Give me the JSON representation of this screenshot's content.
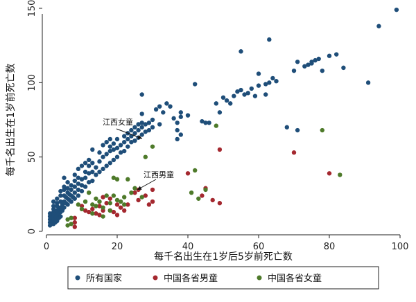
{
  "chart_data": {
    "type": "scatter",
    "xlabel": "每千名出生在1岁后5岁前死亡数",
    "ylabel": "每千名出生在1岁前死亡数",
    "xlim": [
      0,
      100
    ],
    "ylim": [
      0,
      150
    ],
    "xticks": [
      0,
      20,
      40,
      60,
      80,
      100
    ],
    "yticks": [
      0,
      50,
      100,
      150
    ],
    "grid": false,
    "legend_position": "bottom",
    "series": [
      {
        "name": "所有国家",
        "color": "#1f4e79",
        "points": [
          [
            1,
            4
          ],
          [
            1,
            6
          ],
          [
            1,
            8
          ],
          [
            1,
            10
          ],
          [
            1,
            12
          ],
          [
            1.5,
            5
          ],
          [
            1.5,
            7
          ],
          [
            1.5,
            9
          ],
          [
            2,
            5
          ],
          [
            2,
            7
          ],
          [
            2,
            9
          ],
          [
            2,
            11
          ],
          [
            2,
            13
          ],
          [
            2,
            15
          ],
          [
            2,
            17
          ],
          [
            2,
            20
          ],
          [
            2.5,
            6
          ],
          [
            2.5,
            8
          ],
          [
            2.5,
            10
          ],
          [
            2.5,
            12
          ],
          [
            3,
            7
          ],
          [
            3,
            9
          ],
          [
            3,
            11
          ],
          [
            3,
            14
          ],
          [
            3,
            17
          ],
          [
            3,
            19
          ],
          [
            3,
            22
          ],
          [
            3.5,
            9
          ],
          [
            3.5,
            12
          ],
          [
            3.5,
            15
          ],
          [
            4,
            10
          ],
          [
            4,
            13
          ],
          [
            4,
            16
          ],
          [
            4,
            20
          ],
          [
            4,
            24
          ],
          [
            4,
            27
          ],
          [
            4.5,
            14
          ],
          [
            4.5,
            18
          ],
          [
            5,
            16
          ],
          [
            5,
            20
          ],
          [
            5,
            24
          ],
          [
            5,
            28
          ],
          [
            5,
            30
          ],
          [
            5,
            36
          ],
          [
            5.5,
            19
          ],
          [
            5.5,
            23
          ],
          [
            6,
            18
          ],
          [
            6,
            22
          ],
          [
            6,
            26
          ],
          [
            6,
            29
          ],
          [
            6,
            33
          ],
          [
            6.5,
            21
          ],
          [
            6.5,
            25
          ],
          [
            7,
            20
          ],
          [
            7,
            24
          ],
          [
            7,
            28
          ],
          [
            7,
            31
          ],
          [
            7.5,
            23
          ],
          [
            8,
            22
          ],
          [
            8,
            26
          ],
          [
            8,
            30
          ],
          [
            8,
            34
          ],
          [
            8,
            38
          ],
          [
            9,
            24
          ],
          [
            9,
            28
          ],
          [
            9,
            32
          ],
          [
            9,
            36
          ],
          [
            9,
            42
          ],
          [
            10,
            27
          ],
          [
            10,
            31
          ],
          [
            10,
            35
          ],
          [
            10,
            44
          ],
          [
            11,
            30
          ],
          [
            11,
            36
          ],
          [
            11,
            40
          ],
          [
            11,
            46
          ],
          [
            12,
            33
          ],
          [
            12,
            39
          ],
          [
            12,
            44
          ],
          [
            12,
            48
          ],
          [
            13,
            34
          ],
          [
            13,
            40
          ],
          [
            13,
            46
          ],
          [
            13,
            55
          ],
          [
            14,
            38
          ],
          [
            14,
            43
          ],
          [
            15,
            40
          ],
          [
            15,
            47
          ],
          [
            15,
            53
          ],
          [
            16,
            42
          ],
          [
            16,
            50
          ],
          [
            16,
            58
          ],
          [
            17,
            44
          ],
          [
            17,
            52
          ],
          [
            17,
            60
          ],
          [
            18,
            46
          ],
          [
            18,
            54
          ],
          [
            18,
            57
          ],
          [
            18,
            62
          ],
          [
            19,
            48
          ],
          [
            19,
            55
          ],
          [
            19,
            59
          ],
          [
            20,
            50
          ],
          [
            20,
            56
          ],
          [
            20,
            62
          ],
          [
            21,
            53
          ],
          [
            21,
            58
          ],
          [
            22,
            54
          ],
          [
            22,
            60
          ],
          [
            22,
            64
          ],
          [
            23,
            57
          ],
          [
            23,
            62
          ],
          [
            23,
            66
          ],
          [
            24,
            60
          ],
          [
            24,
            64
          ],
          [
            24,
            68
          ],
          [
            25,
            61
          ],
          [
            25,
            66
          ],
          [
            25,
            70
          ],
          [
            26,
            63
          ],
          [
            26,
            68
          ],
          [
            26,
            72
          ],
          [
            27,
            65
          ],
          [
            27,
            70
          ],
          [
            27,
            73
          ],
          [
            27,
            79
          ],
          [
            27,
            92
          ],
          [
            28,
            67
          ],
          [
            28,
            72
          ],
          [
            29,
            68
          ],
          [
            29,
            73
          ],
          [
            30,
            70
          ],
          [
            30,
            75
          ],
          [
            31,
            82
          ],
          [
            32,
            72
          ],
          [
            32,
            84
          ],
          [
            33,
            80
          ],
          [
            34,
            86
          ],
          [
            35,
            84
          ],
          [
            36,
            76
          ],
          [
            37,
            73
          ],
          [
            37,
            68
          ],
          [
            37,
            62
          ],
          [
            38,
            65
          ],
          [
            38,
            77
          ],
          [
            38,
            80
          ],
          [
            40,
            78
          ],
          [
            42,
            99
          ],
          [
            44,
            74
          ],
          [
            45,
            73
          ],
          [
            46,
            73
          ],
          [
            48,
            86
          ],
          [
            49,
            80
          ],
          [
            50,
            90
          ],
          [
            51,
            88
          ],
          [
            52,
            86
          ],
          [
            53,
            91
          ],
          [
            54,
            94
          ],
          [
            55,
            95
          ],
          [
            55,
            121
          ],
          [
            56,
            92
          ],
          [
            57,
            93
          ],
          [
            58,
            96
          ],
          [
            59,
            91
          ],
          [
            60,
            98
          ],
          [
            60,
            106
          ],
          [
            62,
            92
          ],
          [
            62,
            99
          ],
          [
            63,
            100
          ],
          [
            63,
            129
          ],
          [
            64,
            103
          ],
          [
            65,
            101
          ],
          [
            68,
            70
          ],
          [
            70,
            108
          ],
          [
            71,
            68
          ],
          [
            71,
            114
          ],
          [
            73,
            111
          ],
          [
            74,
            112
          ],
          [
            75,
            114
          ],
          [
            75,
            113
          ],
          [
            76,
            115
          ],
          [
            77,
            116
          ],
          [
            78,
            108
          ],
          [
            80,
            118
          ],
          [
            82,
            119
          ],
          [
            84,
            110
          ],
          [
            91,
            100
          ],
          [
            94,
            138
          ],
          [
            99,
            149
          ]
        ]
      },
      {
        "name": "中国各省男童",
        "color": "#a4282f",
        "points": [
          [
            8,
            9
          ],
          [
            8,
            6
          ],
          [
            8,
            3
          ],
          [
            10,
            17
          ],
          [
            11,
            14
          ],
          [
            12,
            13
          ],
          [
            13,
            15
          ],
          [
            14,
            12
          ],
          [
            15,
            17
          ],
          [
            15,
            11
          ],
          [
            16,
            14
          ],
          [
            16,
            23
          ],
          [
            17,
            19
          ],
          [
            18,
            14
          ],
          [
            18,
            22
          ],
          [
            19,
            13
          ],
          [
            20,
            11
          ],
          [
            20,
            18
          ],
          [
            21,
            16
          ],
          [
            22,
            14
          ],
          [
            23,
            18
          ],
          [
            25,
            26
          ],
          [
            26,
            21
          ],
          [
            26,
            28
          ],
          [
            28,
            24
          ],
          [
            29,
            18
          ],
          [
            30,
            20
          ],
          [
            30,
            28
          ],
          [
            40,
            39
          ],
          [
            44,
            24
          ],
          [
            45,
            29
          ],
          [
            47,
            21
          ],
          [
            49,
            19
          ],
          [
            49,
            55
          ],
          [
            70,
            53
          ],
          [
            80,
            39
          ]
        ]
      },
      {
        "name": "中国各省女童",
        "color": "#4e7a2a",
        "points": [
          [
            6,
            4
          ],
          [
            6,
            8
          ],
          [
            7,
            5
          ],
          [
            7,
            9
          ],
          [
            9,
            18
          ],
          [
            10,
            15
          ],
          [
            11,
            20
          ],
          [
            12,
            26
          ],
          [
            13,
            12
          ],
          [
            13,
            18
          ],
          [
            14,
            17
          ],
          [
            14,
            22
          ],
          [
            15,
            20
          ],
          [
            16,
            16
          ],
          [
            16,
            10
          ],
          [
            17,
            24
          ],
          [
            18,
            14
          ],
          [
            18,
            19
          ],
          [
            19,
            24
          ],
          [
            19,
            36
          ],
          [
            20,
            35
          ],
          [
            20,
            21
          ],
          [
            21,
            20
          ],
          [
            22,
            18
          ],
          [
            22,
            23
          ],
          [
            23,
            35
          ],
          [
            24,
            26
          ],
          [
            25,
            29
          ],
          [
            27,
            23
          ],
          [
            28,
            50
          ],
          [
            30,
            57
          ],
          [
            41,
            26
          ],
          [
            42,
            41
          ],
          [
            43,
            22
          ],
          [
            45,
            28
          ],
          [
            48,
            71
          ],
          [
            78,
            68
          ],
          [
            83,
            38
          ]
        ]
      }
    ],
    "annotations": [
      {
        "text": "江西女童"
      },
      {
        "text": "江西男童"
      }
    ]
  }
}
